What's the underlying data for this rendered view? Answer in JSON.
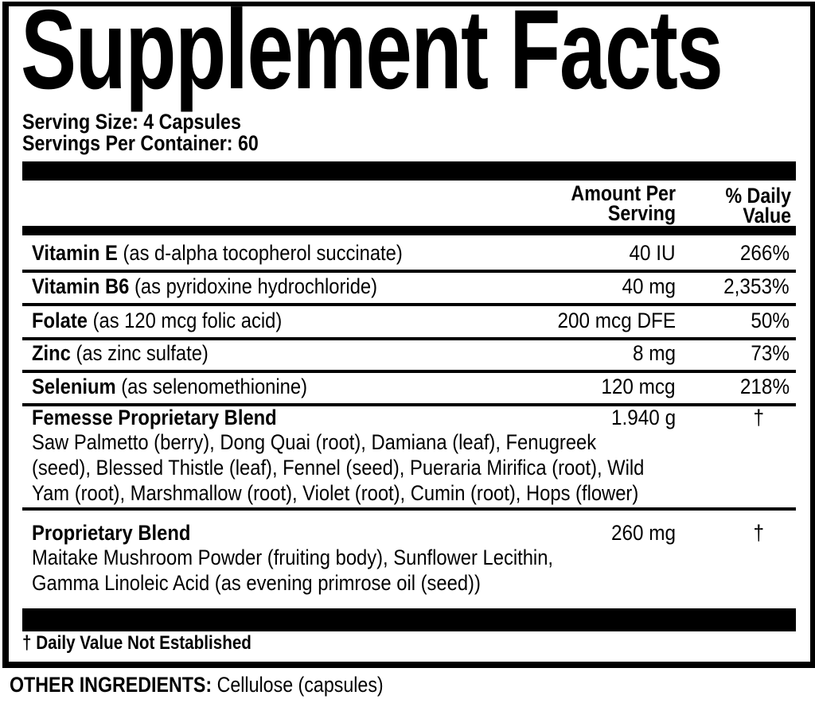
{
  "title": "Supplement Facts",
  "serving_size": "Serving Size: 4 Capsules",
  "servings_per_container": "Servings Per Container: 60",
  "header": {
    "amount_line1": "Amount Per",
    "amount_line2": "Serving",
    "dv_line1": "% Daily",
    "dv_line2": "Value"
  },
  "nutrients": [
    {
      "name": "Vitamin E",
      "source": " (as d-alpha tocopherol succinate)",
      "amount": "40 IU",
      "dv": "266%"
    },
    {
      "name": "Vitamin B6",
      "source": " (as pyridoxine hydrochloride)",
      "amount": "40 mg",
      "dv": "2,353%"
    },
    {
      "name": "Folate",
      "source": " (as 120 mcg folic acid)",
      "amount": "200 mcg DFE",
      "dv": "50%"
    },
    {
      "name": "Zinc",
      "source": " (as zinc sulfate)",
      "amount": "8 mg",
      "dv": "73%"
    },
    {
      "name": "Selenium",
      "source": " (as selenomethionine)",
      "amount": "120 mcg",
      "dv": "218%"
    }
  ],
  "blends": [
    {
      "name": "Femesse Proprietary Blend",
      "amount": "1.940 g",
      "dv": "†",
      "lines": [
        "Saw Palmetto (berry), Dong Quai (root), Damiana (leaf), Fenugreek",
        "(seed), Blessed Thistle (leaf), Fennel (seed), Pueraria Mirifica (root), Wild",
        "Yam (root), Marshmallow (root), Violet (root), Cumin (root), Hops (flower)"
      ]
    },
    {
      "name": "Proprietary Blend",
      "amount": "260 mg",
      "dv": "†",
      "lines": [
        "Maitake Mushroom Powder (fruiting body), Sunflower Lecithin,",
        "Gamma Linoleic Acid (as evening primrose oil (seed))"
      ]
    }
  ],
  "footnote": "† Daily Value Not Established",
  "other_ingredients": {
    "label": "OTHER INGREDIENTS:",
    "value": " Cellulose (capsules)"
  }
}
